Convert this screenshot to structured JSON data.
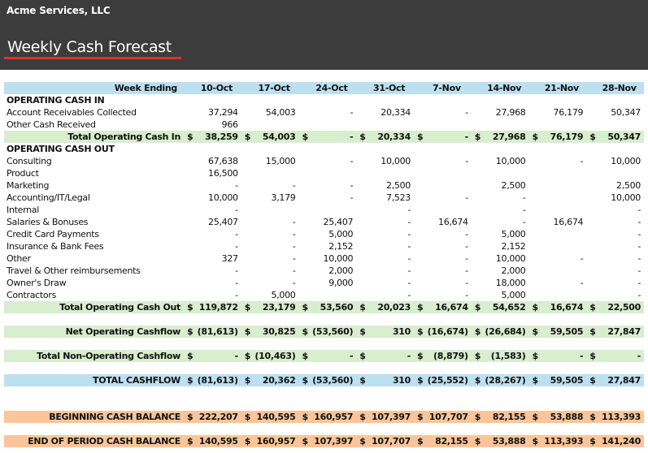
{
  "header": {
    "company": "Acme Services, LLC",
    "title": "Weekly Cash Forecast",
    "accent_color": "#d9342b",
    "bar_color": "#3c3c3c"
  },
  "table": {
    "header_label": "Week Ending",
    "weeks": [
      "10-Oct",
      "17-Oct",
      "24-Oct",
      "31-Oct",
      "7-Nov",
      "14-Nov",
      "21-Nov",
      "28-Nov"
    ],
    "colors": {
      "header": "#bde0f1",
      "total": "#d9edcf",
      "cashflow": "#bde0f1",
      "balance": "#fbc599"
    },
    "cash_in": {
      "title": "OPERATING CASH IN",
      "rows": [
        {
          "label": "Account Receivables Collected",
          "values": [
            "37,294",
            "54,003",
            "-",
            "20,334",
            "-",
            "27,968",
            "76,179",
            "50,347"
          ]
        },
        {
          "label": "Other Cash Received",
          "values": [
            "966",
            "",
            "",
            "",
            "",
            "",
            "",
            ""
          ]
        }
      ],
      "total": {
        "label": "Total Operating Cash In",
        "currency": "$",
        "values": [
          "38,259",
          "54,003",
          "-",
          "20,334",
          "-",
          "27,968",
          "76,179",
          "50,347"
        ]
      }
    },
    "cash_out": {
      "title": "OPERATING CASH OUT",
      "rows": [
        {
          "label": "Consulting",
          "values": [
            "67,638",
            "15,000",
            "-",
            "10,000",
            "-",
            "10,000",
            "-",
            "10,000"
          ]
        },
        {
          "label": "Product",
          "values": [
            "16,500",
            "",
            "",
            "",
            "",
            "",
            "",
            ""
          ]
        },
        {
          "label": "Marketing",
          "values": [
            "-",
            "-",
            "-",
            "2,500",
            "",
            "2,500",
            "",
            "2,500"
          ]
        },
        {
          "label": "Accounting/IT/Legal",
          "values": [
            "10,000",
            "3,179",
            "-",
            "7,523",
            "-",
            "-",
            "",
            "10,000"
          ]
        },
        {
          "label": "Internal",
          "values": [
            "-",
            "",
            "",
            "-",
            "",
            "-",
            "",
            "-"
          ]
        },
        {
          "label": "Salaries & Bonuses",
          "values": [
            "25,407",
            "-",
            "25,407",
            "-",
            "16,674",
            "-",
            "16,674",
            "-"
          ]
        },
        {
          "label": "Credit Card Payments",
          "values": [
            "-",
            "-",
            "5,000",
            "-",
            "-",
            "5,000",
            "",
            "-"
          ]
        },
        {
          "label": "Insurance & Bank Fees",
          "values": [
            "-",
            "-",
            "2,152",
            "-",
            "-",
            "2,152",
            "",
            "-"
          ]
        },
        {
          "label": "Other",
          "values": [
            "327",
            "-",
            "10,000",
            "-",
            "-",
            "10,000",
            "-",
            "-"
          ]
        },
        {
          "label": "Travel & Other reimbursements",
          "values": [
            "-",
            "-",
            "2,000",
            "-",
            "-",
            "2,000",
            "",
            "-"
          ]
        },
        {
          "label": "Owner's Draw",
          "values": [
            "-",
            "-",
            "9,000",
            "-",
            "-",
            "18,000",
            "-",
            "-"
          ]
        },
        {
          "label": "Contractors",
          "values": [
            "-",
            "5,000",
            "",
            "-",
            "-",
            "5,000",
            "",
            "-"
          ]
        }
      ],
      "total": {
        "label": "Total Operating Cash Out",
        "currency": "$",
        "values": [
          "119,872",
          "23,179",
          "53,560",
          "20,023",
          "16,674",
          "54,652",
          "16,674",
          "22,500"
        ]
      }
    },
    "net_operating": {
      "label": "Net Operating Cashflow",
      "currency": "$",
      "values": [
        "(81,613)",
        "30,825",
        "(53,560)",
        "310",
        "(16,674)",
        "(26,684)",
        "59,505",
        "27,847"
      ]
    },
    "non_operating": {
      "label": "Total Non-Operating Cashflow",
      "currency": "$",
      "values": [
        "-",
        "(10,463)",
        "-",
        "-",
        "(8,879)",
        "(1,583)",
        "-",
        "-"
      ]
    },
    "total_cashflow": {
      "label": "TOTAL CASHFLOW",
      "currency": "$",
      "values": [
        "(81,613)",
        "20,362",
        "(53,560)",
        "310",
        "(25,552)",
        "(28,267)",
        "59,505",
        "27,847"
      ]
    },
    "beginning_balance": {
      "label": "BEGINNING CASH BALANCE",
      "currency": "$",
      "values": [
        "222,207",
        "140,595",
        "160,957",
        "107,397",
        "107,707",
        "82,155",
        "53,888",
        "113,393"
      ]
    },
    "ending_balance": {
      "label": "END OF PERIOD CASH BALANCE",
      "currency": "$",
      "values": [
        "140,595",
        "160,957",
        "107,397",
        "107,707",
        "82,155",
        "53,888",
        "113,393",
        "141,240"
      ]
    }
  }
}
